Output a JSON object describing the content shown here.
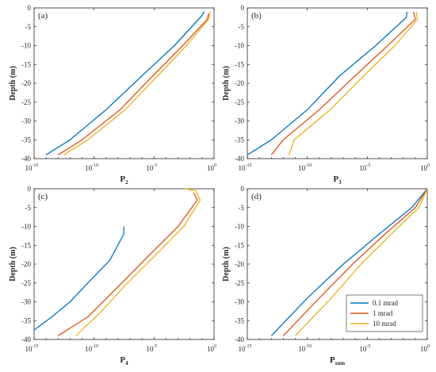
{
  "colors": {
    "s1": "#0072BD",
    "s2": "#D95319",
    "s3": "#EDB120"
  },
  "chart_data": [
    {
      "type": "line",
      "panel_label": "(a)",
      "xlabel_main": "P",
      "xlabel_sub": "2",
      "ylabel": "Depth (m)",
      "x_scale": "log",
      "xlim": [
        1e-15,
        1
      ],
      "ylim": [
        -40,
        0
      ],
      "xticks": [
        "10",
        "10",
        "10",
        "10"
      ],
      "xtick_exps": [
        "-15",
        "-10",
        "-5",
        "0"
      ],
      "yticks": [
        "0",
        "-5",
        "-10",
        "-15",
        "-20",
        "-25",
        "-30",
        "-35",
        "-40"
      ],
      "series": [
        {
          "name": "0.1 mrad",
          "x": [
            0.15,
            0.1,
            0.0005,
            1e-06,
            1e-09,
            1e-12,
            1e-14
          ],
          "y": [
            -1,
            -2,
            -10,
            -18,
            -27,
            -35,
            -39
          ]
        },
        {
          "name": "1 mrad",
          "x": [
            0.35,
            0.28,
            0.0025,
            8e-06,
            1.5e-08,
            1e-11,
            1e-13
          ],
          "y": [
            -1.5,
            -3,
            -10,
            -18,
            -27,
            -35,
            -39
          ]
        },
        {
          "name": "10 mrad",
          "x": [
            0.45,
            0.35,
            0.005,
            2e-05,
            4e-08,
            3e-11,
            3e-13
          ],
          "y": [
            -1,
            -3,
            -10,
            -18,
            -27,
            -35,
            -39
          ]
        }
      ]
    },
    {
      "type": "line",
      "panel_label": "(b)",
      "xlabel_main": "P",
      "xlabel_sub": "3",
      "ylabel": "Depth (m)",
      "x_scale": "log",
      "xlim": [
        1e-15,
        1
      ],
      "ylim": [
        -40,
        0
      ],
      "xticks": [
        "10",
        "10",
        "10",
        "10"
      ],
      "xtick_exps": [
        "-15",
        "-10",
        "-5",
        "0"
      ],
      "yticks": [
        "0",
        "-5",
        "-10",
        "-15",
        "-20",
        "-25",
        "-30",
        "-35",
        "-40"
      ],
      "series": [
        {
          "name": "0.1 mrad",
          "x": [
            0.02,
            0.018,
            5e-05,
            5e-08,
            1e-10,
            1e-13,
            1e-15
          ],
          "y": [
            -1,
            -2.5,
            -10,
            -18,
            -27,
            -35,
            -39
          ]
        },
        {
          "name": "1 mrad",
          "x": [
            0.07,
            0.1,
            0.0005,
            1e-06,
            1e-09,
            1e-12,
            1e-13
          ],
          "y": [
            -1,
            -3,
            -10,
            -18,
            -27,
            -35,
            -39
          ]
        },
        {
          "name": "10 mrad",
          "x": [
            0.12,
            0.15,
            0.002,
            5e-06,
            8e-09,
            8e-12,
            3e-12
          ],
          "y": [
            -1,
            -3,
            -10,
            -18,
            -27,
            -35,
            -39
          ]
        }
      ]
    },
    {
      "type": "line",
      "panel_label": "(c)",
      "xlabel_main": "P",
      "xlabel_sub": "4",
      "ylabel": "Depth (m)",
      "x_scale": "log",
      "xlim": [
        1e-15,
        1
      ],
      "ylim": [
        -40,
        0
      ],
      "xticks": [
        "10",
        "10",
        "10",
        "10"
      ],
      "xtick_exps": [
        "-15",
        "-10",
        "-5",
        "0"
      ],
      "yticks": [
        "0",
        "-5",
        "-10",
        "-15",
        "-20",
        "-25",
        "-30",
        "-35",
        "-40"
      ],
      "series": [
        {
          "name": "0.1 mrad",
          "x": [
            3e-08,
            3e-08,
            2e-09,
            3e-11,
            1e-12,
            3e-14,
            1e-15
          ],
          "y": [
            -10,
            -12,
            -19,
            -25,
            -30,
            -34,
            -37.5
          ]
        },
        {
          "name": "1 mrad",
          "x": [
            0.02,
            0.04,
            0.001,
            3e-06,
            1e-08,
            3e-11,
            1e-13
          ],
          "y": [
            -1,
            -3,
            -10,
            -18,
            -26,
            -34,
            -39
          ]
        },
        {
          "name": "10 mrad",
          "x": [
            0.004,
            0.03,
            0.07,
            0.003,
            1e-05,
            3e-08,
            3e-10,
            3e-12
          ],
          "y": [
            0,
            -0.5,
            -3,
            -10,
            -18,
            -26,
            -33,
            -39
          ]
        }
      ]
    },
    {
      "type": "line",
      "panel_label": "(d)",
      "xlabel_main": "P",
      "xlabel_sub": "sum",
      "ylabel": "Depth (m)",
      "x_scale": "log",
      "xlim": [
        1e-15,
        1
      ],
      "ylim": [
        -40,
        0
      ],
      "xticks": [
        "10",
        "10",
        "10",
        "10"
      ],
      "xtick_exps": [
        "-15",
        "-10",
        "-5",
        "0"
      ],
      "yticks": [
        "0",
        "-5",
        "-10",
        "-15",
        "-20",
        "-25",
        "-30",
        "-35",
        "-40"
      ],
      "legend_position": "bottom-right",
      "series": [
        {
          "name": "0.1 mrad",
          "x": [
            1,
            0.05,
            0.0001,
            1e-07,
            1e-10,
            1e-13
          ],
          "y": [
            0,
            -5,
            -12,
            -20,
            -29,
            -39
          ]
        },
        {
          "name": "1 mrad",
          "x": [
            1,
            0.1,
            0.0003,
            6e-07,
            1e-09,
            1e-12
          ],
          "y": [
            0,
            -5,
            -12,
            -20,
            -29,
            -39
          ]
        },
        {
          "name": "10 mrad",
          "x": [
            1,
            0.2,
            0.001,
            3e-06,
            1e-08,
            1e-11
          ],
          "y": [
            0,
            -5,
            -12,
            -20,
            -29,
            -39
          ]
        }
      ]
    }
  ]
}
